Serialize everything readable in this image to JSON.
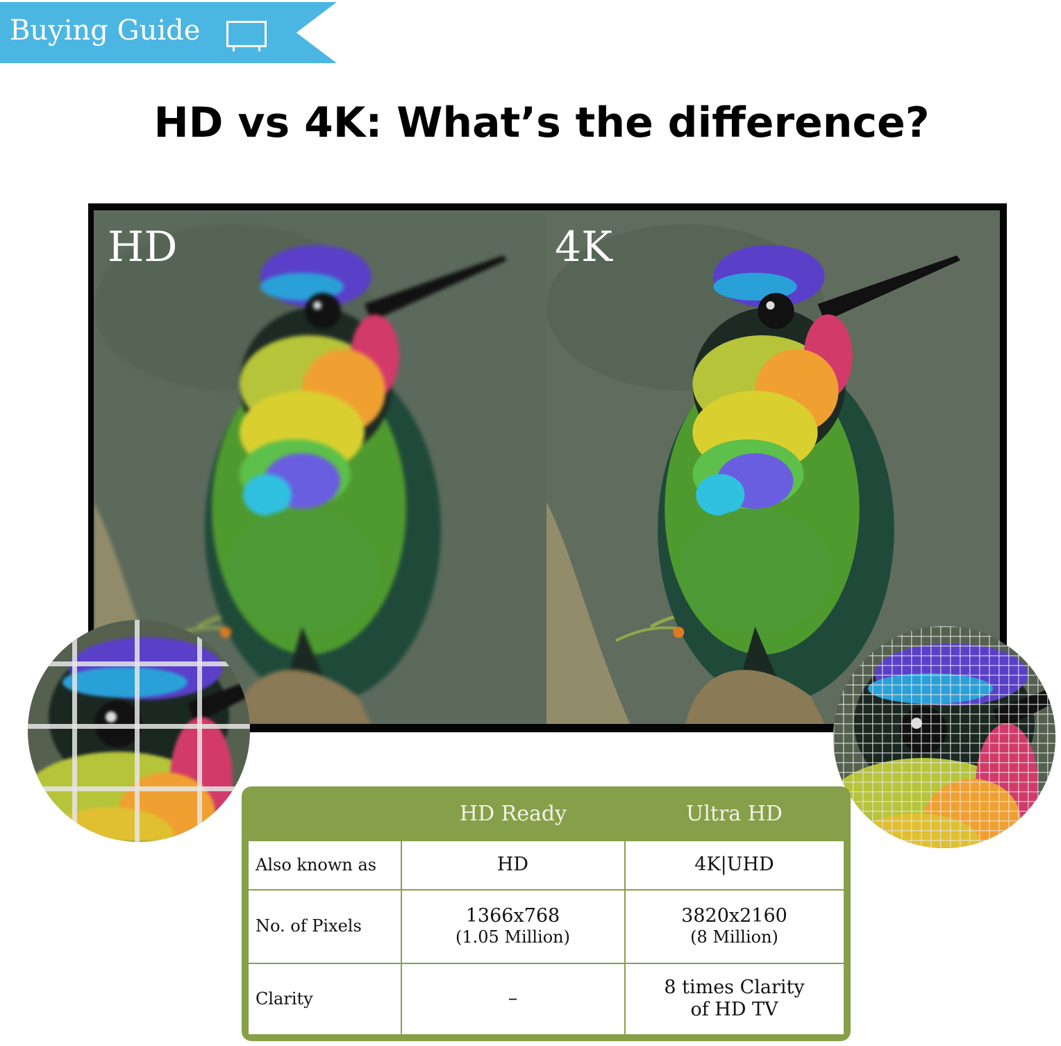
{
  "banner": {
    "label": "Buying Guide",
    "icon": "tv-icon",
    "color": "#4cb6e2"
  },
  "title": "HD vs 4K: What’s the difference?",
  "comparison": {
    "left_label": "HD",
    "right_label": "4K"
  },
  "table": {
    "accent_color": "#86a04a",
    "headers": [
      "",
      "HD Ready",
      "Ultra HD"
    ],
    "rows": [
      {
        "label": "Also known as",
        "hd": "HD",
        "hd_sub": "",
        "uhd": "4K|UHD",
        "uhd_sub": ""
      },
      {
        "label": "No. of Pixels",
        "hd": "1366x768",
        "hd_sub": "(1.05 Million)",
        "uhd": "3820x2160",
        "uhd_sub": "(8 Million)"
      },
      {
        "label": "Clarity",
        "hd": "–",
        "hd_sub": "",
        "uhd": "8 times Clarity",
        "uhd_sub": "of HD TV"
      }
    ]
  }
}
